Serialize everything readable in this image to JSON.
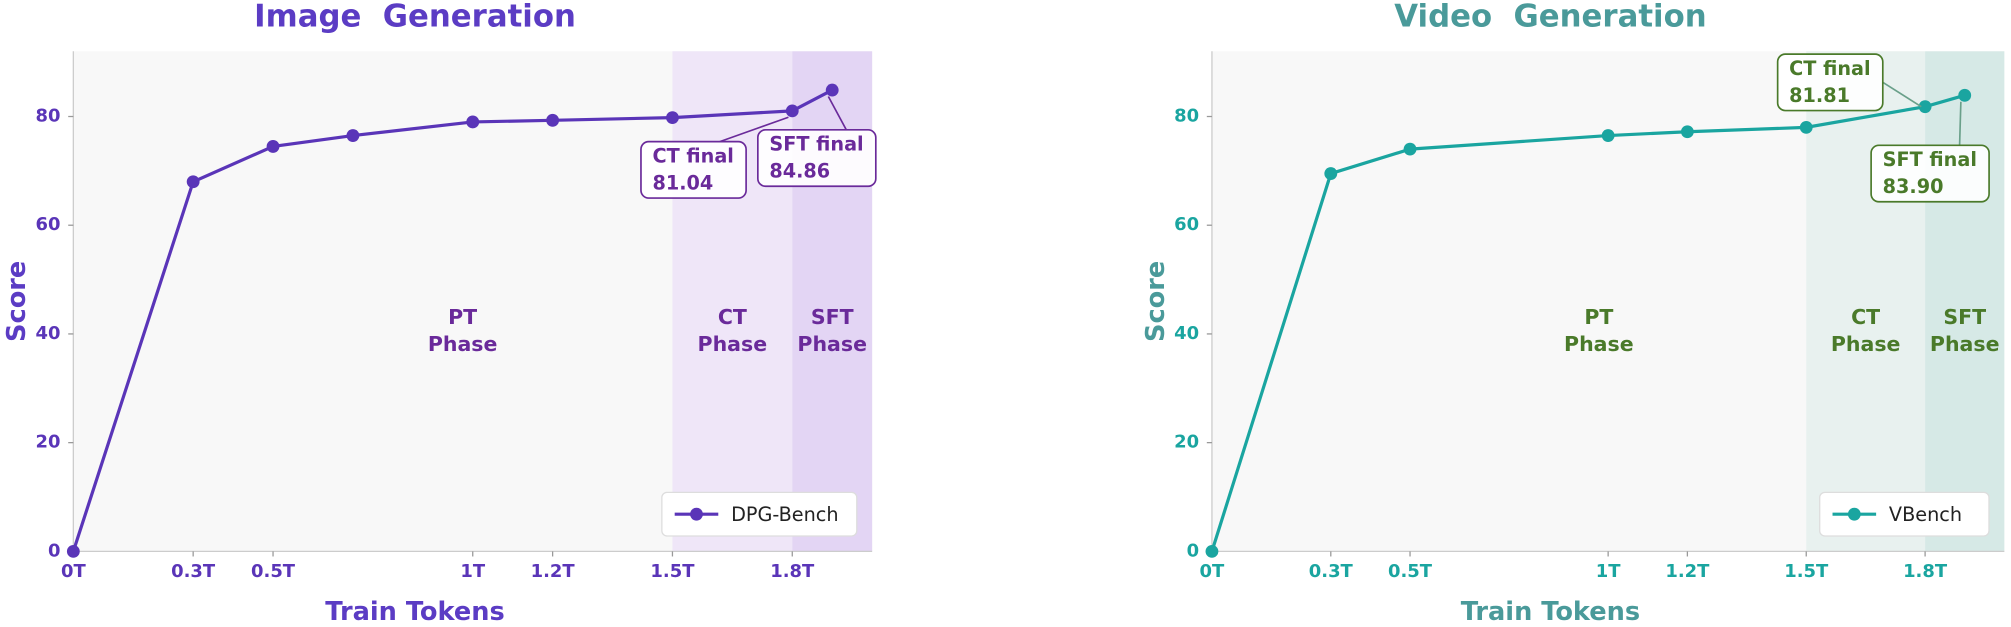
{
  "chart_data": [
    {
      "type": "line",
      "title": "Image  Generation",
      "xlabel": "Train Tokens",
      "ylabel": "Score",
      "title_color": "#5b3cc4",
      "text_color": "#6a2a9a",
      "x": [
        0,
        0.3,
        0.5,
        0.7,
        1,
        1.2,
        1.5,
        1.8,
        1.9
      ],
      "series": [
        {
          "name": "DPG-Bench",
          "color": "#5a35b8",
          "values": [
            0,
            68,
            74.5,
            76.5,
            79,
            79.3,
            79.8,
            81.04,
            84.86
          ]
        }
      ],
      "xlim": [
        0,
        2.0
      ],
      "ylim": [
        0,
        92
      ],
      "xticks": [
        {
          "value": 0,
          "label": "0T"
        },
        {
          "value": 0.3,
          "label": "0.3T"
        },
        {
          "value": 0.5,
          "label": "0.5T"
        },
        {
          "value": 1,
          "label": "1T"
        },
        {
          "value": 1.2,
          "label": "1.2T"
        },
        {
          "value": 1.5,
          "label": "1.5T"
        },
        {
          "value": 1.8,
          "label": "1.8T"
        }
      ],
      "yticks": [
        0,
        20,
        40,
        60,
        80
      ],
      "phases": [
        {
          "label": [
            "PT",
            "Phase"
          ],
          "xlim": [
            0,
            1.5
          ]
        },
        {
          "label": [
            "CT",
            "Phase"
          ],
          "xlim": [
            1.5,
            1.8
          ],
          "color": "#efe6f8"
        },
        {
          "label": [
            "SFT",
            "Phase"
          ],
          "xlim": [
            1.8,
            2.0
          ],
          "color": "#e3d5f4"
        }
      ],
      "annotations": [
        {
          "text": "CT final",
          "value": 81.04
        },
        {
          "text": "SFT final",
          "value": 84.86
        }
      ],
      "legend": "lower right"
    },
    {
      "type": "line",
      "title": "Video  Generation",
      "xlabel": "Train Tokens",
      "ylabel": "Score",
      "title_color": "#4a9a9a",
      "text_color": "#4a7a2a",
      "x": [
        0,
        0.3,
        0.5,
        1,
        1.2,
        1.5,
        1.8,
        1.9
      ],
      "series": [
        {
          "name": "VBench",
          "color": "#1aa5a0",
          "values": [
            0,
            69.5,
            74,
            76.5,
            77.2,
            78,
            81.81,
            83.9
          ]
        }
      ],
      "xlim": [
        0,
        2.0
      ],
      "ylim": [
        0,
        92
      ],
      "xticks": [
        {
          "value": 0,
          "label": "0T"
        },
        {
          "value": 0.3,
          "label": "0.3T"
        },
        {
          "value": 0.5,
          "label": "0.5T"
        },
        {
          "value": 1,
          "label": "1T"
        },
        {
          "value": 1.2,
          "label": "1.2T"
        },
        {
          "value": 1.5,
          "label": "1.5T"
        },
        {
          "value": 1.8,
          "label": "1.8T"
        }
      ],
      "yticks": [
        0,
        20,
        40,
        60,
        80
      ],
      "phases": [
        {
          "label": [
            "PT",
            "Phase"
          ],
          "xlim": [
            0,
            1.5
          ]
        },
        {
          "label": [
            "CT",
            "Phase"
          ],
          "xlim": [
            1.5,
            1.8
          ],
          "color": "#e8f1ef"
        },
        {
          "label": [
            "SFT",
            "Phase"
          ],
          "xlim": [
            1.8,
            2.0
          ],
          "color": "#d6e9e6"
        }
      ],
      "annotations": [
        {
          "text": "CT final",
          "value": 81.81
        },
        {
          "text": "SFT final",
          "value": {
            "value": 83.9,
            "label": "83.90"
          }
        }
      ],
      "legend": "lower right"
    }
  ]
}
